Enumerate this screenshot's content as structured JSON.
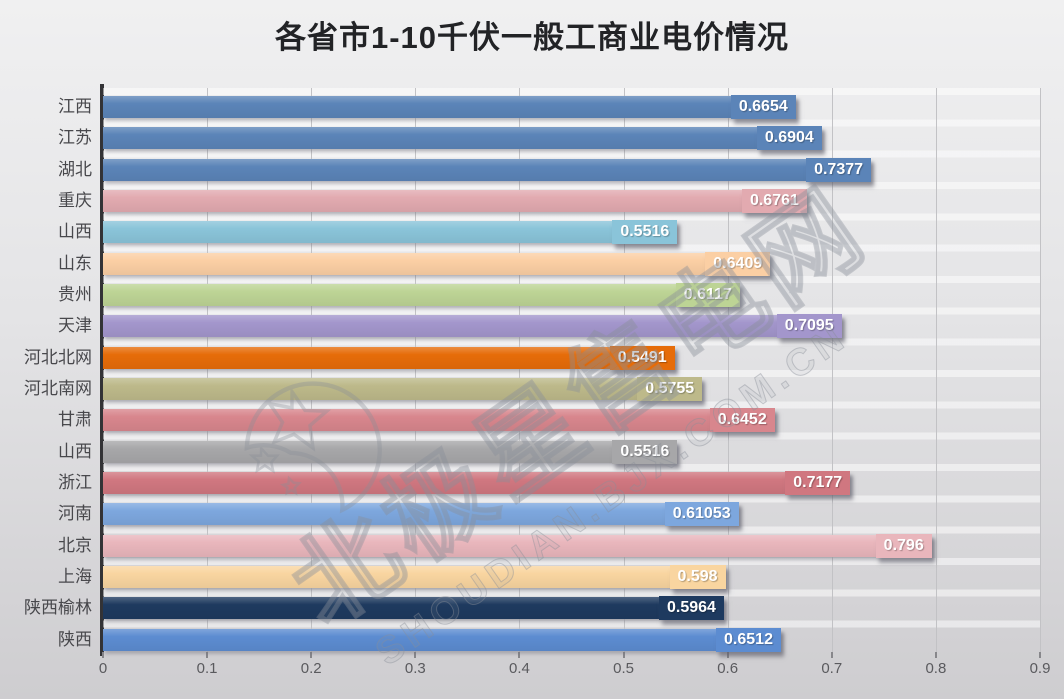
{
  "chart_data": {
    "type": "bar",
    "orientation": "horizontal",
    "title": "各省市1-10千伏一般工商业电价情况",
    "categories": [
      "江西",
      "江苏",
      "湖北",
      "重庆",
      "山西",
      "山东",
      "贵州",
      "天津",
      "河北北网",
      "河北南网",
      "甘肃",
      "山西",
      "浙江",
      "河南",
      "北京",
      "上海",
      "陕西榆林",
      "陕西"
    ],
    "values": [
      "0.6654",
      "0.6904",
      "0.7377",
      "0.6761",
      "0.5516",
      "0.6409",
      "0.6117",
      "0.7095",
      "0.5491",
      "0.5755",
      "0.6452",
      "0.5516",
      "0.7177",
      "0.61053",
      "0.796",
      "0.598",
      "0.5964",
      "0.6512"
    ],
    "colors": [
      "#5b84b8",
      "#5b84b8",
      "#5b84b8",
      "#e2aab0",
      "#8ac4d9",
      "#fbcfa4",
      "#bdd495",
      "#a396cc",
      "#e66c09",
      "#bdb98a",
      "#d8868d",
      "#a7a7a9",
      "#d07780",
      "#7da7de",
      "#e9b6bc",
      "#f9d5a0",
      "#1e3a5f",
      "#5c8cd1"
    ],
    "xlabel": "",
    "ylabel": "",
    "xlim": [
      0,
      0.9
    ],
    "x_ticks": [
      "0",
      "0.1",
      "0.2",
      "0.3",
      "0.4",
      "0.5",
      "0.6",
      "0.7",
      "0.8",
      "0.9"
    ],
    "grid": true,
    "legend": "none",
    "value_label_color": "#ffffff"
  },
  "watermark": {
    "cn": "北极星售电网",
    "en": "SHOUDIAN.BJX.COM.CN"
  }
}
